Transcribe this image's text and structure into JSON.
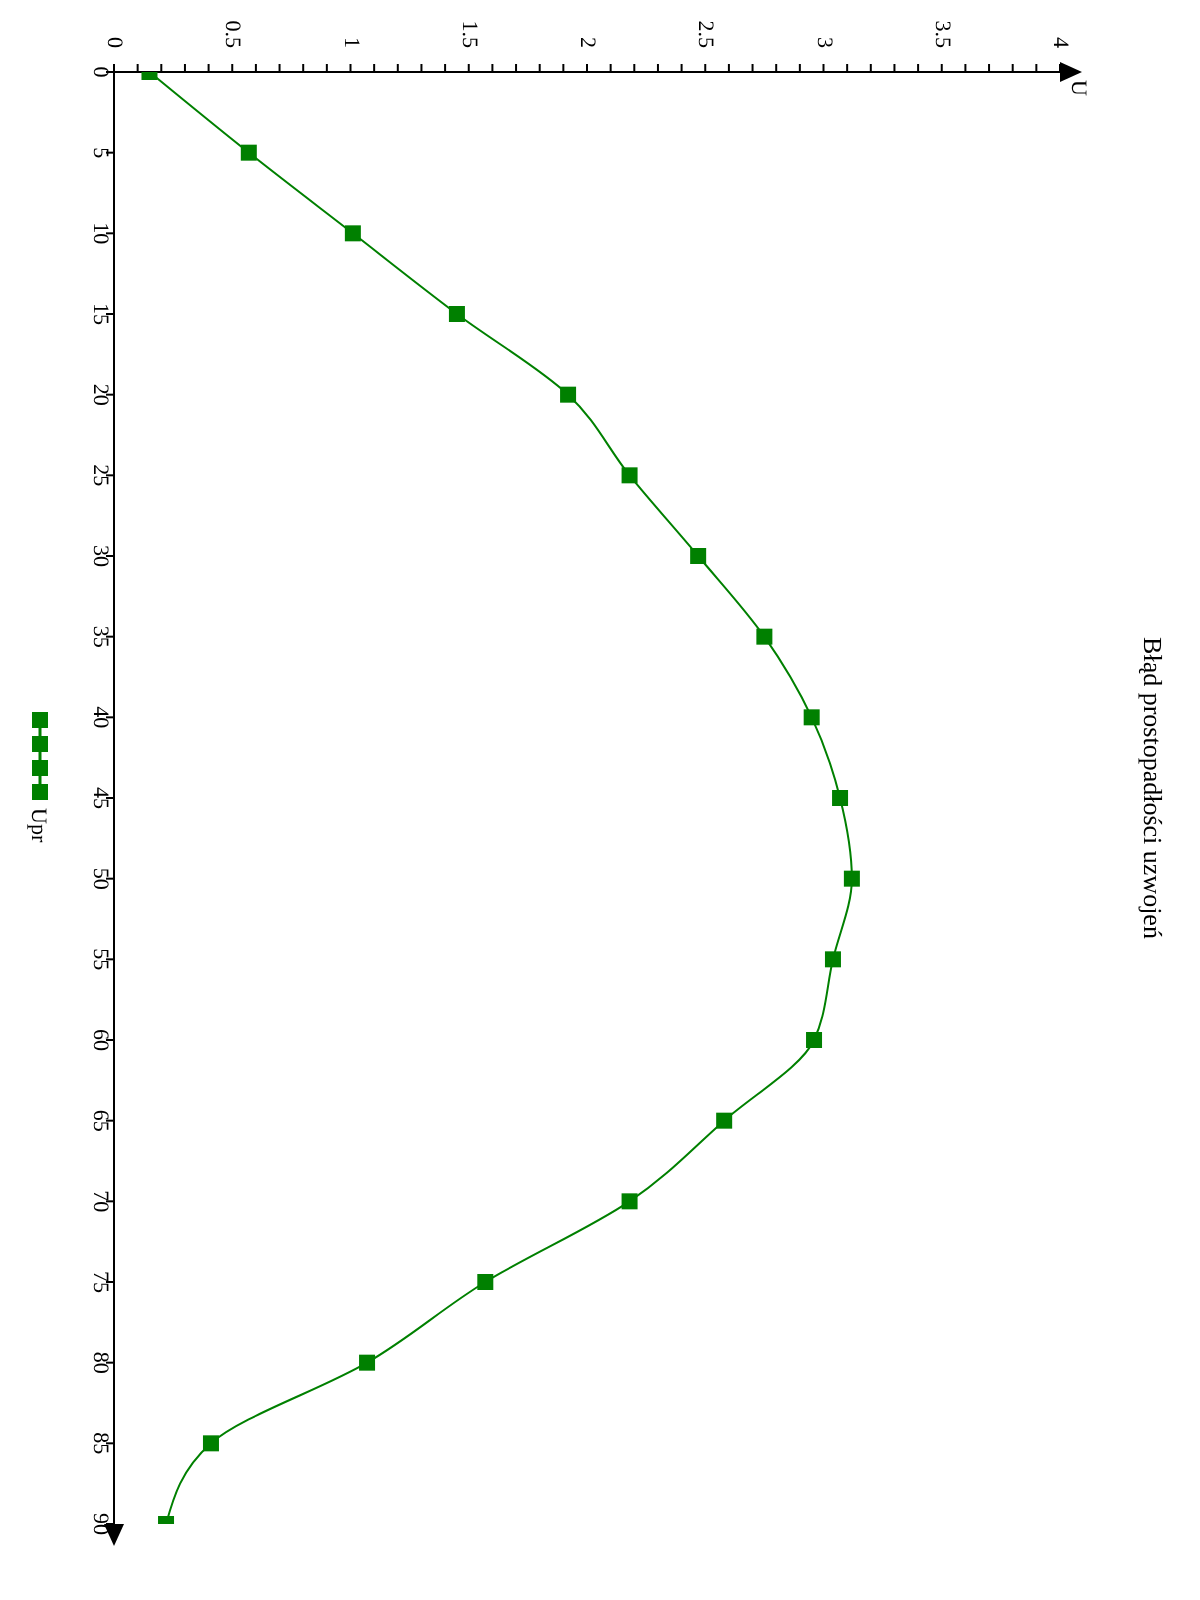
{
  "chart_data": {
    "type": "line",
    "title": "Błąd prostopadłości uzwojeń",
    "annotations": [
      "U"
    ],
    "series": [
      {
        "name": "Upr",
        "color": "#008000",
        "x": [
          0.15,
          0.57,
          1.01,
          1.45,
          1.92,
          2.18,
          2.47,
          2.75,
          2.95,
          3.07,
          3.12,
          3.04,
          2.96,
          2.58,
          2.18,
          1.57,
          1.07,
          0.41,
          0.22
        ],
        "values": [
          0,
          5,
          10,
          15,
          20,
          25,
          30,
          35,
          40,
          45,
          50,
          55,
          60,
          65,
          70,
          75,
          80,
          85,
          90
        ]
      }
    ],
    "ylim": [
      90,
      0
    ],
    "yticks": [
      0,
      5,
      10,
      15,
      20,
      25,
      30,
      35,
      40,
      45,
      50,
      55,
      60,
      65,
      70,
      75,
      80,
      85,
      90
    ],
    "xlim": [
      0,
      4
    ],
    "xticks": [
      0,
      {
        "value": 0.1,
        "label": null
      },
      {
        "value": 0.2,
        "label": null
      },
      {
        "value": 0.3,
        "label": null
      },
      {
        "value": 0.4,
        "label": null
      },
      0.5,
      {
        "value": 0.6,
        "label": null
      },
      {
        "value": 0.7,
        "label": null
      },
      {
        "value": 0.8,
        "label": null
      },
      {
        "value": 0.9,
        "label": null
      },
      1,
      {
        "value": 1.1,
        "label": null
      },
      {
        "value": 1.2,
        "label": null
      },
      {
        "value": 1.3,
        "label": null
      },
      {
        "value": 1.4,
        "label": null
      },
      1.5,
      {
        "value": 1.6,
        "label": null
      },
      {
        "value": 1.7,
        "label": null
      },
      {
        "value": 1.8,
        "label": null
      },
      {
        "value": 1.9,
        "label": null
      },
      2,
      {
        "value": 2.1,
        "label": null
      },
      {
        "value": 2.2,
        "label": null
      },
      {
        "value": 2.3,
        "label": null
      },
      {
        "value": 2.4,
        "label": null
      },
      2.5,
      {
        "value": 2.6,
        "label": null
      },
      {
        "value": 2.7,
        "label": null
      },
      {
        "value": 2.8,
        "label": null
      },
      {
        "value": 2.9,
        "label": null
      },
      3,
      {
        "value": 3.1,
        "label": null
      },
      {
        "value": 3.2,
        "label": null
      },
      {
        "value": 3.3,
        "label": null
      },
      {
        "value": 3.4,
        "label": null
      },
      3.5,
      {
        "value": 3.6,
        "label": null
      },
      {
        "value": 3.7,
        "label": null
      },
      {
        "value": 3.8,
        "label": null
      },
      {
        "value": 3.9,
        "label": null
      },
      4
    ],
    "grid": false,
    "legend": "left",
    "marker": "square",
    "line_style": "solid"
  }
}
